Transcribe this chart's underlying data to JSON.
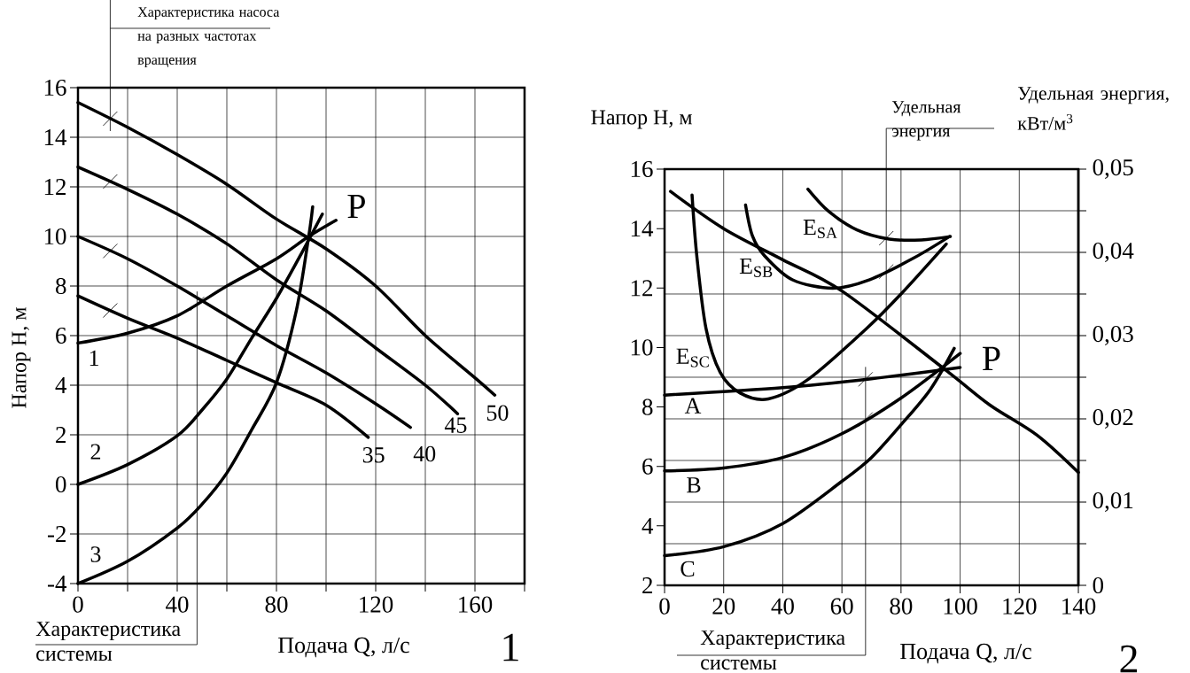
{
  "chart_data": [
    {
      "type": "line",
      "xlabel": "Подача Q, л/с",
      "ylabel": "Напор H, м",
      "xlim": [
        0,
        180
      ],
      "xticks": [
        0,
        {
          "value": 20,
          "label": null
        },
        40,
        {
          "value": 60,
          "label": null
        },
        80,
        {
          "value": 100,
          "label": null
        },
        120,
        {
          "value": 140,
          "label": null
        },
        160,
        {
          "value": 180,
          "label": null
        }
      ],
      "ylim": [
        -4,
        16
      ],
      "yticks": [
        -4,
        -2,
        0,
        2,
        4,
        6,
        8,
        10,
        12,
        14,
        16
      ],
      "grid": true,
      "marker": "none",
      "line_style": "solid",
      "series": [
        {
          "name": "35",
          "color": "#000000",
          "x": [
            0,
            20,
            40,
            60,
            80,
            100,
            117
          ],
          "values": [
            7.6,
            6.7,
            5.9,
            5.0,
            4.1,
            3.2,
            1.9
          ]
        },
        {
          "name": "40",
          "color": "#000000",
          "x": [
            0,
            20,
            40,
            60,
            80,
            100,
            120,
            134
          ],
          "values": [
            10.0,
            9.1,
            8.0,
            6.8,
            5.6,
            4.5,
            3.25,
            2.3
          ]
        },
        {
          "name": "45",
          "color": "#000000",
          "x": [
            0,
            20,
            40,
            60,
            80,
            100,
            120,
            140,
            153
          ],
          "values": [
            12.8,
            11.9,
            10.9,
            9.7,
            8.25,
            7.0,
            5.5,
            4.0,
            2.85
          ]
        },
        {
          "name": "50",
          "color": "#000000",
          "x": [
            0,
            20,
            40,
            60,
            80,
            100,
            120,
            140,
            160,
            168
          ],
          "values": [
            15.4,
            14.4,
            13.3,
            12.1,
            10.7,
            9.5,
            8.0,
            6.0,
            4.3,
            3.6
          ]
        },
        {
          "name": "1",
          "color": "#000000",
          "x": [
            0,
            20,
            40,
            60,
            80,
            93,
            104
          ],
          "values": [
            5.7,
            6.1,
            6.8,
            8.0,
            9.1,
            10.0,
            10.65
          ]
        },
        {
          "name": "2",
          "color": "#000000",
          "x": [
            0,
            20,
            40,
            50,
            60,
            70,
            80,
            90,
            98.5
          ],
          "values": [
            0,
            0.8,
            1.96,
            3.0,
            4.25,
            5.9,
            7.5,
            9.3,
            10.9
          ]
        },
        {
          "name": "3",
          "color": "#000000",
          "x": [
            0,
            20,
            40,
            50,
            60,
            70,
            80,
            88,
            93,
            94.6
          ],
          "values": [
            -4,
            -3.1,
            -1.76,
            -0.8,
            0.46,
            2.2,
            4.1,
            7.0,
            10.0,
            11.2
          ]
        }
      ],
      "annotations": [
        {
          "text": "P",
          "x": 93,
          "y": 10
        },
        "Характеристика насоса на разных частотах вращения",
        "Характеристика системы",
        "1"
      ]
    },
    {
      "type": "line",
      "xlabel": "Подача Q, л/с",
      "ylabel": "Напор H, м",
      "y2label": "Удельная энергия, кВт/м$^{3}$",
      "xlim": [
        0,
        140
      ],
      "xticks": [
        0,
        20,
        40,
        60,
        80,
        100,
        120,
        140
      ],
      "ylim": [
        2,
        16
      ],
      "yticks": [
        2,
        4,
        6,
        8,
        10,
        12,
        14,
        16
      ],
      "y2lim": [
        0,
        0.05
      ],
      "y2ticks": [
        0,
        {
          "value": 0.005,
          "label": null
        },
        {
          "value": 0.01,
          "label": "0,01"
        },
        {
          "value": 0.015,
          "label": null
        },
        {
          "value": 0.02,
          "label": "0,02"
        },
        {
          "value": 0.025,
          "label": null
        },
        {
          "value": 0.03,
          "label": "0,03"
        },
        {
          "value": 0.035,
          "label": null
        },
        {
          "value": 0.04,
          "label": "0,04"
        },
        {
          "value": 0.045,
          "label": null
        },
        {
          "value": 0.05,
          "label": "0,05"
        }
      ],
      "grid": true,
      "marker": "none",
      "line_style": "solid",
      "series": [
        {
          "color": "#000000",
          "x": [
            2,
            20,
            40,
            60,
            95,
            110,
            126,
            140
          ],
          "values": [
            15.25,
            14.0,
            12.95,
            11.9,
            9.25,
            8.07,
            7.05,
            5.8
          ]
        },
        {
          "name": "A",
          "color": "#000000",
          "x": [
            0,
            40,
            70,
            100
          ],
          "values": [
            8.4,
            8.65,
            8.95,
            9.33
          ]
        },
        {
          "name": "B",
          "color": "#000000",
          "x": [
            0,
            20,
            40,
            60,
            80,
            100
          ],
          "values": [
            5.85,
            5.95,
            6.3,
            7.1,
            8.3,
            9.8
          ]
        },
        {
          "name": "C",
          "color": "#000000",
          "x": [
            0,
            20,
            40,
            60,
            70,
            80,
            90,
            98
          ],
          "values": [
            3.0,
            3.3,
            4.08,
            5.5,
            6.3,
            7.4,
            8.6,
            9.97
          ]
        },
        {
          "name": "E$_{SA}$",
          "color": "#000000",
          "axis": "y2",
          "x": [
            48.5,
            55.6,
            65.1,
            76,
            86.9,
            96.7
          ],
          "values": [
            0.0476,
            0.0449,
            0.0427,
            0.0416,
            0.0415,
            0.0419
          ]
        },
        {
          "name": "E$_{SB}$",
          "color": "#000000",
          "axis": "y2",
          "x": [
            27.4,
            29.7,
            33.8,
            43.3,
            56.9,
            69.2,
            84.2,
            96.4
          ],
          "values": [
            0.0457,
            0.042,
            0.0396,
            0.0367,
            0.0357,
            0.0367,
            0.0393,
            0.0419
          ]
        },
        {
          "name": "E$_{SC}$",
          "color": "#000000",
          "axis": "y2",
          "x": [
            9.3,
            10.9,
            14,
            18.8,
            25.6,
            35.1,
            48.8,
            68.5,
            80,
            95.3
          ],
          "values": [
            0.0469,
            0.0396,
            0.0309,
            0.0256,
            0.0231,
            0.0224,
            0.0248,
            0.0309,
            0.035,
            0.041
          ]
        }
      ],
      "annotations": [
        {
          "text": "P",
          "x": 95,
          "y": 9.3
        },
        "Удельная энергия",
        "Характеристика системы",
        "2"
      ]
    }
  ]
}
